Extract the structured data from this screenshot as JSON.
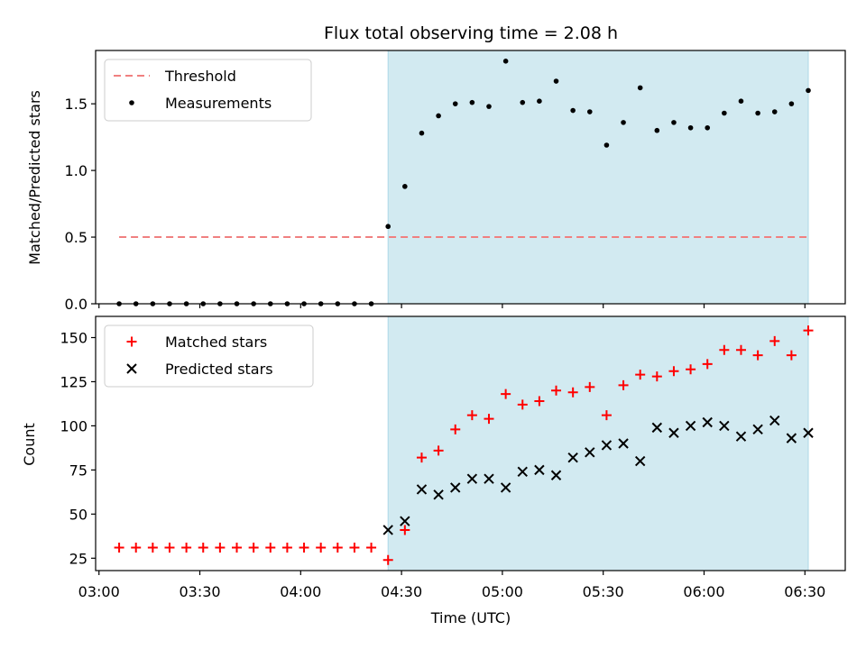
{
  "chart_data": {
    "title": "Flux total observing time = 2.08 h",
    "xlabel": "Time (UTC)",
    "x_ticks": [
      "03:00",
      "03:30",
      "04:00",
      "04:30",
      "05:00",
      "05:30",
      "06:00",
      "06:30"
    ],
    "x_tick_minutes": [
      180,
      210,
      240,
      270,
      300,
      330,
      360,
      390
    ],
    "xlim": [
      179,
      402
    ],
    "highlight_span": [
      266,
      391
    ],
    "highlight_color": "#add8e6",
    "panels": [
      {
        "type": "scatter",
        "ylabel": "Matched/Predicted stars",
        "ylim": [
          0,
          1.9
        ],
        "y_ticks": [
          "0.0",
          "0.5",
          "1.0",
          "1.5"
        ],
        "y_tick_values": [
          0,
          0.5,
          1.0,
          1.5
        ],
        "legend_position": "upper-left",
        "threshold": {
          "name": "Threshold",
          "value": 0.5,
          "x_range": [
            186,
            391
          ],
          "color": "#f08080"
        },
        "series": [
          {
            "name": "Measurements",
            "marker": "dot",
            "color": "#000000",
            "x": [
              186,
              191,
              196,
              201,
              206,
              211,
              216,
              221,
              226,
              231,
              236,
              241,
              246,
              251,
              256,
              261,
              266,
              271,
              276,
              281,
              286,
              291,
              296,
              301,
              306,
              311,
              316,
              321,
              326,
              331,
              336,
              341,
              346,
              351,
              356,
              361,
              366,
              371,
              376,
              381,
              386,
              391
            ],
            "y": [
              0,
              0,
              0,
              0,
              0,
              0,
              0,
              0,
              0,
              0,
              0,
              0,
              0,
              0,
              0,
              0,
              0.58,
              0.88,
              1.28,
              1.41,
              1.5,
              1.51,
              1.48,
              1.82,
              1.51,
              1.52,
              1.67,
              1.45,
              1.44,
              1.19,
              1.36,
              1.62,
              1.3,
              1.36,
              1.32,
              1.32,
              1.43,
              1.52,
              1.43,
              1.44,
              1.5,
              1.6
            ]
          }
        ]
      },
      {
        "type": "scatter",
        "ylabel": "Count",
        "ylim": [
          18,
          162
        ],
        "y_ticks": [
          "25",
          "50",
          "75",
          "100",
          "125",
          "150"
        ],
        "y_tick_values": [
          25,
          50,
          75,
          100,
          125,
          150
        ],
        "legend_position": "upper-left",
        "series": [
          {
            "name": "Matched stars",
            "marker": "plus",
            "color": "#ff0000",
            "x": [
              186,
              191,
              196,
              201,
              206,
              211,
              216,
              221,
              226,
              231,
              236,
              241,
              246,
              251,
              256,
              261,
              266,
              271,
              276,
              281,
              286,
              291,
              296,
              301,
              306,
              311,
              316,
              321,
              326,
              331,
              336,
              341,
              346,
              351,
              356,
              361,
              366,
              371,
              376,
              381,
              386,
              391
            ],
            "y": [
              31,
              31,
              31,
              31,
              31,
              31,
              31,
              31,
              31,
              31,
              31,
              31,
              31,
              31,
              31,
              31,
              24,
              41,
              82,
              86,
              98,
              106,
              104,
              118,
              112,
              114,
              120,
              119,
              122,
              106,
              123,
              129,
              128,
              131,
              132,
              135,
              143,
              143,
              140,
              148,
              140,
              154
            ]
          },
          {
            "name": "Predicted stars",
            "marker": "x",
            "color": "#000000",
            "x": [
              266,
              271,
              276,
              281,
              286,
              291,
              296,
              301,
              306,
              311,
              316,
              321,
              326,
              331,
              336,
              341,
              346,
              351,
              356,
              361,
              366,
              371,
              376,
              381,
              386,
              391
            ],
            "y": [
              41,
              46,
              64,
              61,
              65,
              70,
              70,
              65,
              74,
              75,
              72,
              82,
              85,
              89,
              90,
              80,
              99,
              96,
              100,
              102,
              100,
              94,
              98,
              103,
              93,
              96
            ]
          }
        ]
      }
    ]
  }
}
